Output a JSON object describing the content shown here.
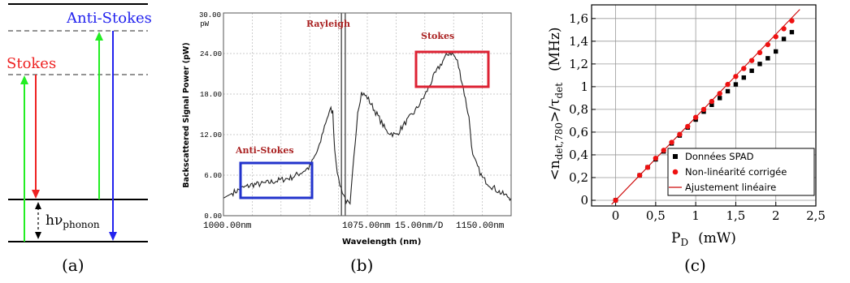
{
  "panel_a": {
    "caption": "(a)",
    "anti_stokes_label": "Anti-Stokes",
    "stokes_label": "Stokes",
    "phonon_label_main": "hν",
    "phonon_label_sub": "phonon",
    "colors": {
      "pump": "#22ee22",
      "stokes": "#ee2222",
      "anti_stokes": "#2222ee"
    }
  },
  "panel_b": {
    "caption": "(b)",
    "rayleigh_label": "Rayleigh",
    "stokes_label": "Stokes",
    "anti_stokes_label": "Anti-Stokes",
    "xlabel": "Wavelength (nm)",
    "ylabel": "Backscattered Signal Power (pW)",
    "ytop_label_1": "30.00",
    "ytop_label_2": "pW",
    "x_tick_labels": [
      "1000.00nm",
      "1075.00nm",
      "15.00nm/D",
      "1150.00nm"
    ],
    "chart_data": {
      "type": "line",
      "xlim": [
        1000,
        1150
      ],
      "ylim": [
        0,
        30
      ],
      "y_ticks": [
        {
          "value": 0,
          "label": "0.00"
        },
        {
          "value": 6,
          "label": "6.00"
        },
        {
          "value": 12,
          "label": "12.00"
        },
        {
          "value": 18,
          "label": "18.00"
        },
        {
          "value": 24,
          "label": "24.00"
        }
      ],
      "x": [
        1000,
        1005,
        1010,
        1015,
        1020,
        1025,
        1030,
        1035,
        1040,
        1045,
        1050,
        1052,
        1054,
        1056,
        1057,
        1058,
        1060,
        1062,
        1064,
        1066,
        1068,
        1070,
        1072,
        1075,
        1080,
        1085,
        1090,
        1095,
        1100,
        1105,
        1110,
        1115,
        1118,
        1120,
        1122,
        1125,
        1128,
        1130,
        1135,
        1140,
        1145,
        1150
      ],
      "y": [
        2.6,
        3.4,
        4.1,
        4.6,
        4.7,
        5.0,
        5.3,
        5.6,
        6.3,
        7.2,
        10.2,
        12.6,
        14.5,
        15.7,
        15.3,
        9.8,
        5.2,
        3.6,
        2.2,
        1.4,
        8.6,
        15.5,
        18.2,
        17.5,
        15.0,
        12.5,
        11.9,
        13.8,
        15.5,
        17.8,
        20.8,
        23.2,
        24.2,
        23.8,
        22.8,
        19.0,
        14.5,
        8.8,
        5.6,
        4.3,
        3.3,
        2.6
      ],
      "rayleigh_lines_x": [
        1061.5,
        1063.5
      ]
    }
  },
  "panel_c": {
    "caption": "(c)",
    "ylabel_main": "<n",
    "ylabel_sub": "det,780",
    "ylabel_mid": ">/τ",
    "ylabel_sub2": "det",
    "ylabel_unit": "(MHz)",
    "xlabel_main": "P",
    "xlabel_sub": "D",
    "xlabel_unit": "(mW)",
    "legend": [
      "Données SPAD",
      "Non-linéarité corrigée",
      "Ajustement linéaire"
    ],
    "chart_data": {
      "type": "scatter",
      "xlim": [
        -0.3,
        2.5
      ],
      "ylim": [
        -0.05,
        1.72
      ],
      "x_ticks": [
        {
          "value": 0,
          "label": "0"
        },
        {
          "value": 0.5,
          "label": "0,5"
        },
        {
          "value": 1,
          "label": "1"
        },
        {
          "value": 1.5,
          "label": "1,5"
        },
        {
          "value": 2,
          "label": "2"
        },
        {
          "value": 2.5,
          "label": "2,5"
        }
      ],
      "y_ticks": [
        {
          "value": 0,
          "label": "0"
        },
        {
          "value": 0.2,
          "label": "0,2"
        },
        {
          "value": 0.4,
          "label": "0,4"
        },
        {
          "value": 0.6,
          "label": "0,6"
        },
        {
          "value": 0.8,
          "label": "0,8"
        },
        {
          "value": 1,
          "label": "1"
        },
        {
          "value": 1.2,
          "label": "1,2"
        },
        {
          "value": 1.4,
          "label": "1,4"
        },
        {
          "value": 1.6,
          "label": "1,6"
        }
      ],
      "series": [
        {
          "name": "Données SPAD",
          "color": "#000000",
          "x": [
            0,
            0.3,
            0.4,
            0.5,
            0.6,
            0.7,
            0.8,
            0.9,
            1.0,
            1.1,
            1.2,
            1.3,
            1.4,
            1.5,
            1.6,
            1.7,
            1.8,
            1.9,
            2.0,
            2.1,
            2.2
          ],
          "y": [
            0,
            0.22,
            0.29,
            0.36,
            0.43,
            0.5,
            0.57,
            0.64,
            0.71,
            0.78,
            0.84,
            0.9,
            0.96,
            1.02,
            1.08,
            1.14,
            1.2,
            1.25,
            1.31,
            1.42,
            1.48
          ]
        },
        {
          "name": "Non-linéarité corrigée",
          "color": "#ee1111",
          "x": [
            0,
            0.3,
            0.4,
            0.5,
            0.6,
            0.7,
            0.8,
            0.9,
            1.0,
            1.1,
            1.2,
            1.3,
            1.4,
            1.5,
            1.6,
            1.7,
            1.8,
            1.9,
            2.0,
            2.1,
            2.2
          ],
          "y": [
            0,
            0.22,
            0.29,
            0.37,
            0.44,
            0.51,
            0.58,
            0.65,
            0.73,
            0.8,
            0.87,
            0.94,
            1.02,
            1.09,
            1.16,
            1.23,
            1.3,
            1.37,
            1.44,
            1.51,
            1.58
          ]
        },
        {
          "name": "Ajustement linéaire",
          "color": "#cc0000",
          "type": "line",
          "x": [
            -0.05,
            2.3
          ],
          "y": [
            -0.036,
            1.68
          ]
        }
      ]
    }
  }
}
